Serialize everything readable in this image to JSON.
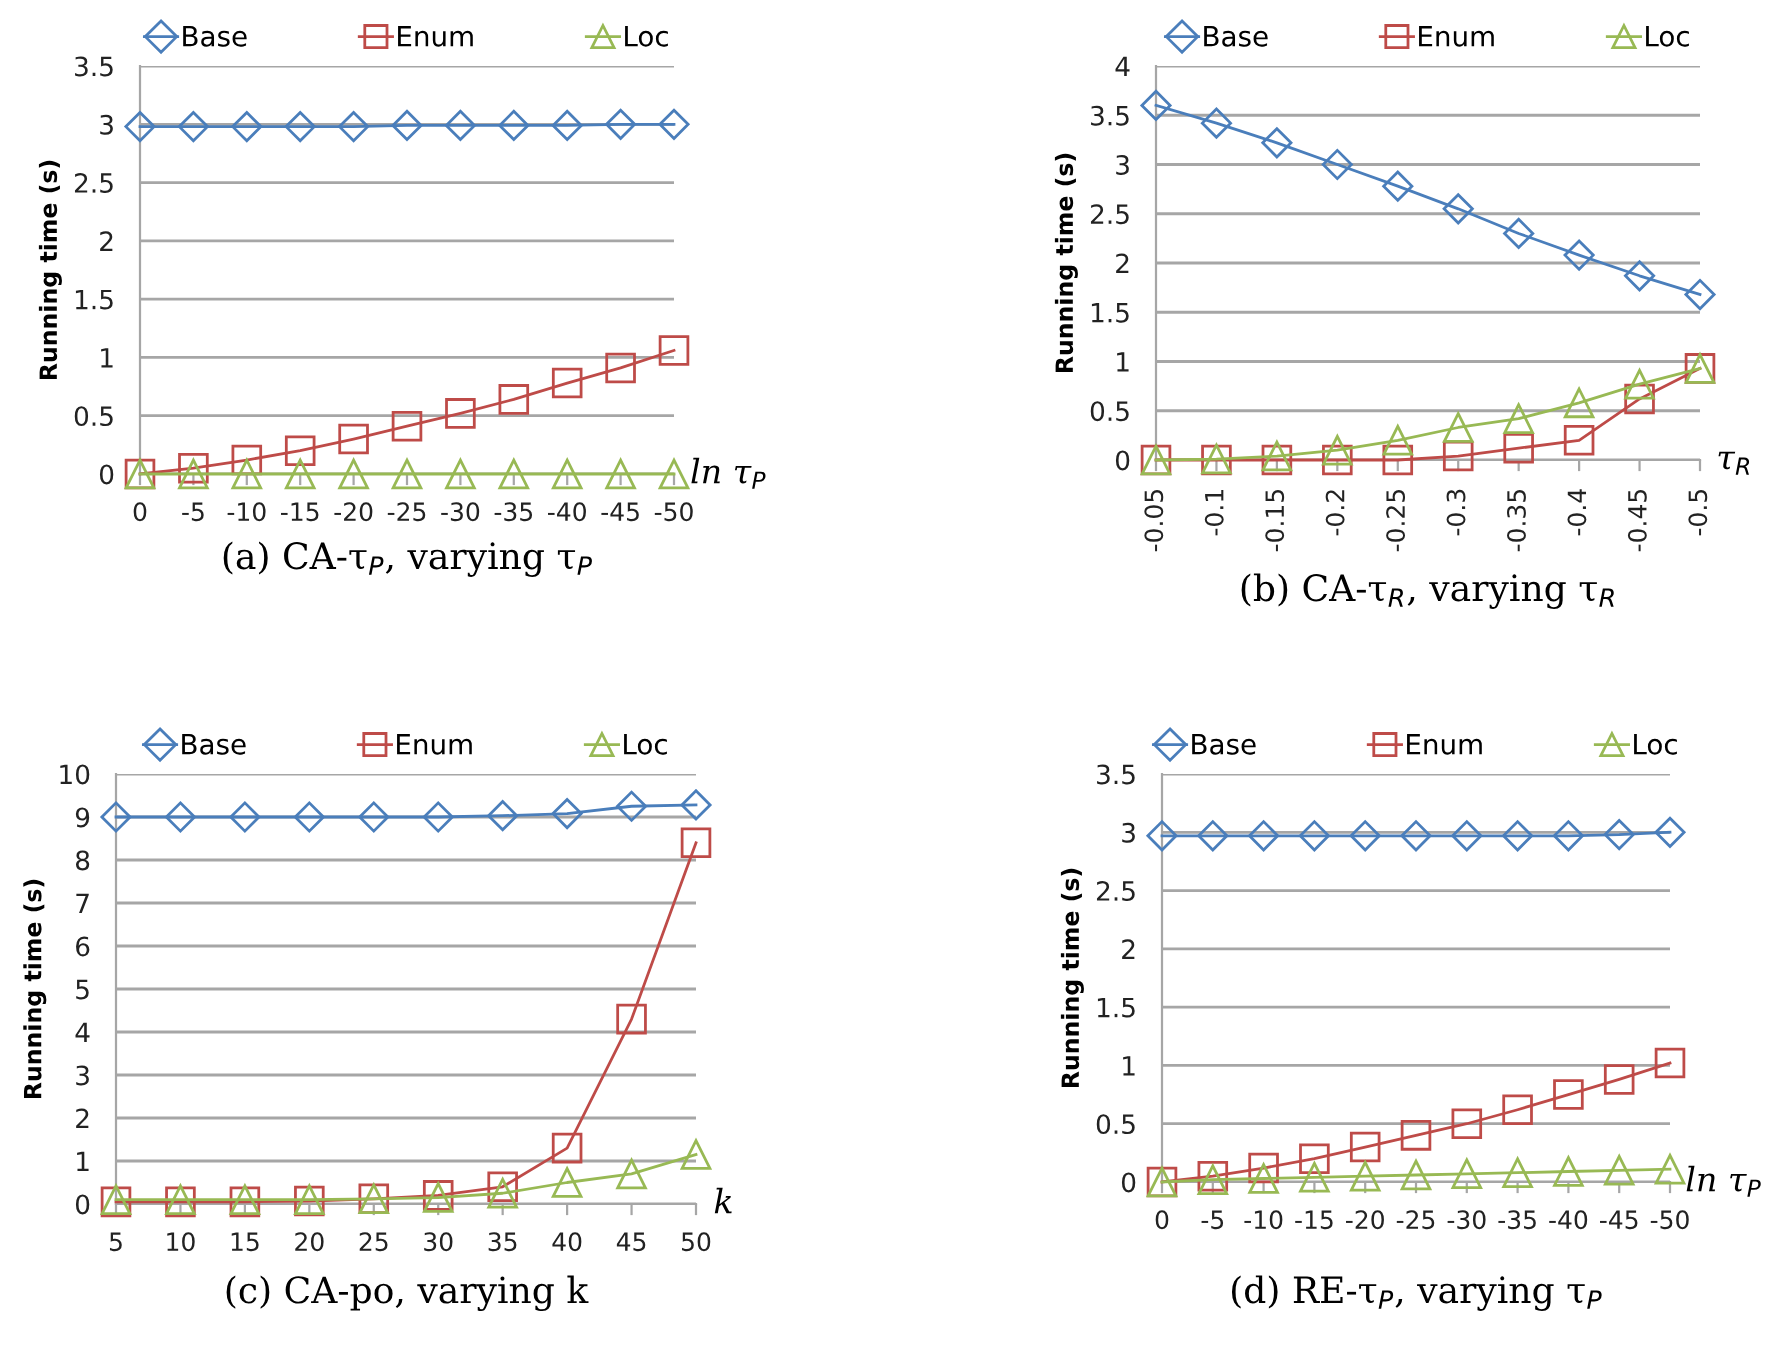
{
  "chart_data": [
    {
      "type": "line",
      "title": "(a) CA-τ$_{P}$, varying τ$_{P}$",
      "xlabel": "ln τ$_{P}$",
      "ylabel": "Running time (s)",
      "categories": [
        "0",
        "-5",
        "-10",
        "-15",
        "-20",
        "-25",
        "-30",
        "-35",
        "-40",
        "-45",
        "-50"
      ],
      "series": [
        {
          "name": "Base",
          "color": "#4a7ebb",
          "marker": "diamond",
          "values": [
            2.98,
            2.98,
            2.98,
            2.98,
            2.98,
            2.99,
            2.99,
            2.99,
            2.99,
            3.0,
            3.0
          ]
        },
        {
          "name": "Enum",
          "color": "#be4b48",
          "marker": "square",
          "values": [
            0,
            0.05,
            0.12,
            0.2,
            0.3,
            0.41,
            0.52,
            0.64,
            0.78,
            0.91,
            1.06
          ]
        },
        {
          "name": "Loc",
          "color": "#98b954",
          "marker": "triangle",
          "values": [
            0,
            0,
            0,
            0,
            0,
            0,
            0,
            0,
            0,
            0,
            0
          ]
        }
      ],
      "ylim": [
        0,
        3.5
      ],
      "yticks": [
        0,
        0.5,
        1,
        1.5,
        2,
        2.5,
        3,
        3.5
      ],
      "grid": "y",
      "legend": "top"
    },
    {
      "type": "line",
      "title": "(b) CA-τ$_{R}$, varying τ$_{R}$",
      "xlabel": "τ$_{R}$",
      "ylabel": "Running time (s)",
      "categories": [
        "-0.05",
        "-0.1",
        "-0.15",
        "-0.2",
        "-0.25",
        "-0.3",
        "-0.35",
        "-0.4",
        "-0.45",
        "-0.5"
      ],
      "series": [
        {
          "name": "Base",
          "color": "#4a7ebb",
          "marker": "diamond",
          "values": [
            3.6,
            3.42,
            3.22,
            3.0,
            2.78,
            2.55,
            2.3,
            2.08,
            1.87,
            1.68
          ]
        },
        {
          "name": "Enum",
          "color": "#be4b48",
          "marker": "square",
          "values": [
            0,
            0,
            0,
            0,
            0,
            0.04,
            0.12,
            0.2,
            0.62,
            0.93
          ]
        },
        {
          "name": "Loc",
          "color": "#98b954",
          "marker": "triangle",
          "values": [
            0,
            0.01,
            0.04,
            0.1,
            0.2,
            0.33,
            0.42,
            0.58,
            0.77,
            0.93
          ]
        }
      ],
      "ylim": [
        0,
        4
      ],
      "yticks": [
        0,
        0.5,
        1,
        1.5,
        2,
        2.5,
        3,
        3.5,
        4
      ],
      "grid": "y",
      "legend": "top"
    },
    {
      "type": "line",
      "title": "(c) CA-po, varying k",
      "xlabel": "k",
      "ylabel": "Running time (s)",
      "categories": [
        "5",
        "10",
        "15",
        "20",
        "25",
        "30",
        "35",
        "40",
        "45",
        "50"
      ],
      "series": [
        {
          "name": "Base",
          "color": "#4a7ebb",
          "marker": "diamond",
          "values": [
            9,
            9,
            9,
            9,
            9,
            9,
            9.03,
            9.08,
            9.25,
            9.28
          ]
        },
        {
          "name": "Enum",
          "color": "#be4b48",
          "marker": "square",
          "values": [
            0.05,
            0.05,
            0.05,
            0.07,
            0.12,
            0.2,
            0.4,
            1.3,
            4.3,
            8.4
          ]
        },
        {
          "name": "Loc",
          "color": "#98b954",
          "marker": "triangle",
          "values": [
            0.1,
            0.1,
            0.1,
            0.1,
            0.12,
            0.15,
            0.25,
            0.5,
            0.7,
            1.15
          ]
        }
      ],
      "ylim": [
        0,
        10
      ],
      "yticks": [
        0,
        1,
        2,
        3,
        4,
        5,
        6,
        7,
        8,
        9,
        10
      ],
      "grid": "y",
      "legend": "top"
    },
    {
      "type": "line",
      "title": "(d) RE-τ$_{P}$, varying τ$_{P}$",
      "xlabel": "ln τ$_{P}$",
      "ylabel": "Running time (s)",
      "categories": [
        "0",
        "-5",
        "-10",
        "-15",
        "-20",
        "-25",
        "-30",
        "-35",
        "-40",
        "-45",
        "-50"
      ],
      "series": [
        {
          "name": "Base",
          "color": "#4a7ebb",
          "marker": "diamond",
          "values": [
            2.97,
            2.97,
            2.97,
            2.97,
            2.97,
            2.97,
            2.97,
            2.97,
            2.97,
            2.98,
            3.0
          ]
        },
        {
          "name": "Enum",
          "color": "#be4b48",
          "marker": "square",
          "values": [
            0,
            0.05,
            0.12,
            0.2,
            0.3,
            0.4,
            0.5,
            0.62,
            0.75,
            0.88,
            1.02
          ]
        },
        {
          "name": "Loc",
          "color": "#98b954",
          "marker": "triangle",
          "values": [
            0,
            0.02,
            0.03,
            0.04,
            0.05,
            0.06,
            0.07,
            0.08,
            0.09,
            0.1,
            0.11
          ]
        }
      ],
      "ylim": [
        0,
        3.5
      ],
      "yticks": [
        0,
        0.5,
        1,
        1.5,
        2,
        2.5,
        3,
        3.5
      ],
      "grid": "y",
      "legend": "top"
    }
  ]
}
